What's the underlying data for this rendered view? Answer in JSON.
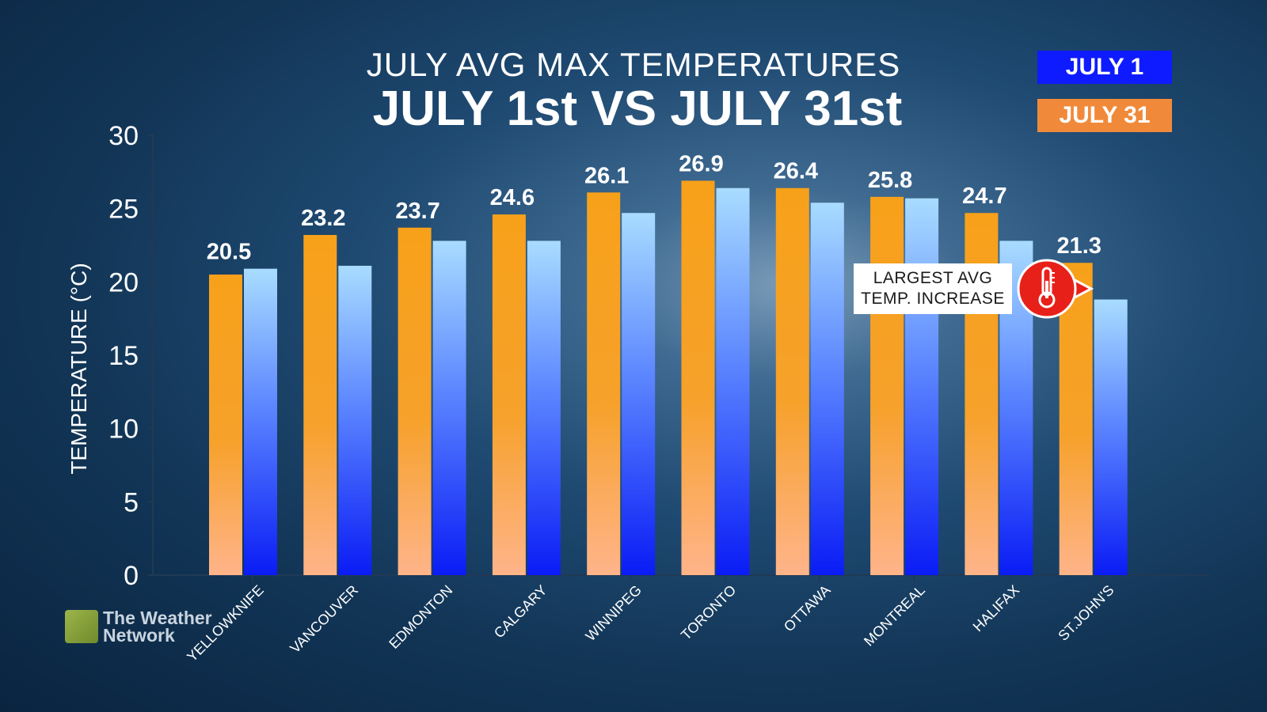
{
  "title_line1": "JULY AVG MAX TEMPERATURES",
  "title_line2": "JULY 1st VS JULY 31st",
  "legend": {
    "july1": "JULY 1",
    "july31": "JULY 31",
    "july1_color": "#0f1bff",
    "july31_color": "#f5a623"
  },
  "callout": {
    "line1": "LARGEST AVG",
    "line2": "TEMP. INCREASE",
    "icon": "thermometer-icon",
    "color": "#e8201a"
  },
  "logo": {
    "line1": "The Weather",
    "line2": "Network"
  },
  "chart_data": {
    "type": "bar",
    "ylabel": "TEMPERATURE (°C)",
    "ylim": [
      0,
      30
    ],
    "yticks": [
      0,
      5,
      10,
      15,
      20,
      25,
      30
    ],
    "categories": [
      "YELLOWKNIFE",
      "VANCOUVER",
      "EDMONTON",
      "CALGARY",
      "WINNIPEG",
      "TORONTO",
      "OTTAWA",
      "MONTREAL",
      "HALIFAX",
      "ST.JOHN'S"
    ],
    "series": [
      {
        "name": "JULY 31",
        "values": [
          20.5,
          23.2,
          23.7,
          24.6,
          26.1,
          26.9,
          26.4,
          25.8,
          24.7,
          21.3
        ],
        "data_labels": [
          "20.5",
          "23.2",
          "23.7",
          "24.6",
          "26.1",
          "26.9",
          "26.4",
          "25.8",
          "24.7",
          "21.3"
        ]
      },
      {
        "name": "JULY 1",
        "values": [
          20.9,
          21.1,
          22.8,
          22.8,
          24.7,
          26.4,
          25.4,
          25.7,
          22.8,
          18.8
        ]
      }
    ],
    "grid": false,
    "legend_position": "top-right"
  }
}
